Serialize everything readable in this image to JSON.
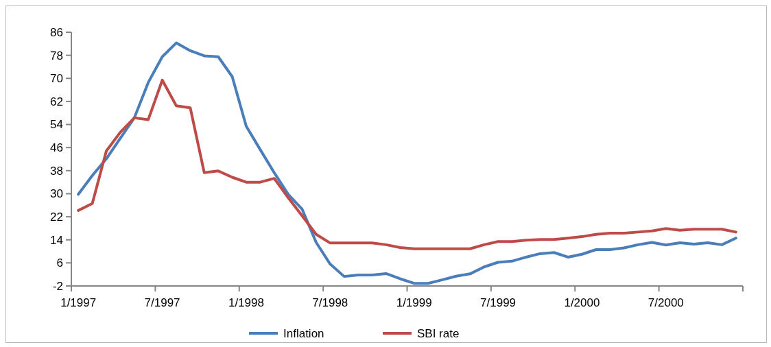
{
  "chart_data": {
    "type": "line",
    "categories": [
      "1/1997",
      null,
      null,
      null,
      null,
      null,
      "7/1997",
      null,
      null,
      null,
      null,
      null,
      "1/1998",
      null,
      null,
      null,
      null,
      null,
      "7/1998",
      null,
      null,
      null,
      null,
      null,
      "1/1999",
      null,
      null,
      null,
      null,
      null,
      "7/1999",
      null,
      null,
      null,
      null,
      null,
      "1/2000",
      null,
      null,
      null,
      null,
      null,
      "7/2000",
      null,
      null,
      null,
      null,
      null
    ],
    "series": [
      {
        "name": "Inflation",
        "color": "#4a7ebb",
        "values": [
          29.8,
          36.3,
          42.1,
          49.2,
          56.3,
          68.6,
          77.5,
          82.3,
          79.6,
          77.8,
          77.5,
          70.6,
          53.4,
          45.3,
          37.3,
          29.8,
          24.6,
          13.1,
          5.6,
          1.3,
          1.8,
          1.8,
          2.3,
          0.5,
          -1.1,
          -1.1,
          0.1,
          1.4,
          2.2,
          4.6,
          6.2,
          6.6,
          8.0,
          9.2,
          9.6,
          8.0,
          9.0,
          10.6,
          10.6,
          11.2,
          12.3,
          13.1,
          12.2,
          13.0,
          12.5,
          13.0,
          12.3,
          14.6
        ]
      },
      {
        "name": "SBI rate",
        "color": "#be4b48",
        "values": [
          24.2,
          26.6,
          44.8,
          51.3,
          56.3,
          55.7,
          69.4,
          60.5,
          59.8,
          37.3,
          37.9,
          35.7,
          34.0,
          34.0,
          35.3,
          28.6,
          22.3,
          15.9,
          12.9,
          12.9,
          12.9,
          12.9,
          12.3,
          11.3,
          10.9,
          10.9,
          10.9,
          10.9,
          10.9,
          12.3,
          13.4,
          13.4,
          13.9,
          14.1,
          14.1,
          14.6,
          15.1,
          15.9,
          16.3,
          16.3,
          16.7,
          17.1,
          17.9,
          17.3,
          17.7,
          17.7,
          17.7,
          16.7
        ]
      }
    ],
    "ylim": [
      -2,
      86
    ],
    "yticks": [
      -2,
      6,
      14,
      22,
      30,
      38,
      46,
      54,
      62,
      70,
      78,
      86
    ],
    "grid": false,
    "legend": "bottom",
    "marker": "none",
    "line_style": "solid"
  }
}
